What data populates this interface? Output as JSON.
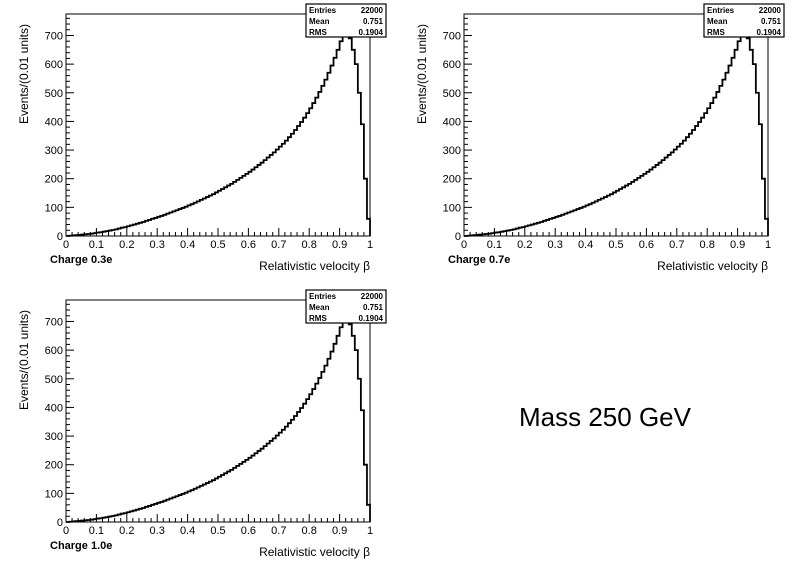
{
  "annotation": "Mass 250 GeV",
  "colors": {
    "line": "#000000",
    "background": "#ffffff"
  },
  "chart_data": [
    {
      "type": "histogram",
      "title": "",
      "caption": "Charge 0.3e",
      "xlabel": "Relativistic velocity β",
      "ylabel": "Events/(0.01 units)",
      "xlim": [
        0,
        1
      ],
      "ylim": [
        0,
        700
      ],
      "xticks": [
        "0",
        "0.1",
        "0.2",
        "0.3",
        "0.4",
        "0.5",
        "0.6",
        "0.7",
        "0.8",
        "0.9",
        "1"
      ],
      "yticks": [
        "0",
        "100",
        "200",
        "300",
        "400",
        "500",
        "600",
        "700"
      ],
      "bin_width": 0.01,
      "stats": {
        "Entries": "22000",
        "Mean": "0.751",
        "RMS": "0.1904"
      },
      "legend_position": "top-right",
      "grid": false,
      "values": [
        0,
        1,
        2,
        3,
        4,
        5,
        6,
        7,
        8,
        10,
        12,
        13,
        15,
        17,
        19,
        21,
        23,
        26,
        29,
        31,
        34,
        37,
        40,
        43,
        46,
        49,
        53,
        56,
        60,
        63,
        67,
        70,
        74,
        78,
        82,
        86,
        90,
        94,
        98,
        102,
        107,
        111,
        116,
        121,
        126,
        131,
        136,
        141,
        146,
        152,
        158,
        164,
        170,
        176,
        182,
        189,
        196,
        203,
        210,
        217,
        224,
        232,
        240,
        248,
        256,
        265,
        274,
        283,
        292,
        302,
        312,
        322,
        333,
        345,
        357,
        370,
        384,
        398,
        413,
        429,
        446,
        464,
        483,
        503,
        524,
        546,
        570,
        595,
        622,
        650,
        680,
        700,
        700,
        690,
        650,
        600,
        500,
        390,
        200,
        60
      ]
    },
    {
      "type": "histogram",
      "title": "",
      "caption": "Charge 0.7e",
      "xlabel": "Relativistic velocity β",
      "ylabel": "Events/(0.01 units)",
      "xlim": [
        0,
        1
      ],
      "ylim": [
        0,
        700
      ],
      "xticks": [
        "0",
        "0.1",
        "0.2",
        "0.3",
        "0.4",
        "0.5",
        "0.6",
        "0.7",
        "0.8",
        "0.9",
        "1"
      ],
      "yticks": [
        "0",
        "100",
        "200",
        "300",
        "400",
        "500",
        "600",
        "700"
      ],
      "bin_width": 0.01,
      "stats": {
        "Entries": "22000",
        "Mean": "0.751",
        "RMS": "0.1904"
      },
      "legend_position": "top-right",
      "grid": false,
      "values": [
        0,
        1,
        2,
        3,
        4,
        5,
        6,
        7,
        8,
        10,
        12,
        13,
        15,
        17,
        19,
        21,
        23,
        26,
        29,
        31,
        34,
        37,
        40,
        43,
        46,
        49,
        53,
        56,
        60,
        63,
        67,
        70,
        74,
        78,
        82,
        86,
        90,
        94,
        98,
        102,
        107,
        111,
        116,
        121,
        126,
        131,
        136,
        141,
        146,
        152,
        158,
        164,
        170,
        176,
        182,
        189,
        196,
        203,
        210,
        217,
        224,
        232,
        240,
        248,
        256,
        265,
        274,
        283,
        292,
        302,
        312,
        322,
        333,
        345,
        357,
        370,
        384,
        398,
        413,
        429,
        446,
        464,
        483,
        503,
        524,
        546,
        570,
        595,
        622,
        650,
        680,
        700,
        700,
        690,
        650,
        600,
        500,
        390,
        200,
        60
      ]
    },
    {
      "type": "histogram",
      "title": "",
      "caption": "Charge 1.0e",
      "xlabel": "Relativistic velocity β",
      "ylabel": "Events/(0.01 units)",
      "xlim": [
        0,
        1
      ],
      "ylim": [
        0,
        700
      ],
      "xticks": [
        "0",
        "0.1",
        "0.2",
        "0.3",
        "0.4",
        "0.5",
        "0.6",
        "0.7",
        "0.8",
        "0.9",
        "1"
      ],
      "yticks": [
        "0",
        "100",
        "200",
        "300",
        "400",
        "500",
        "600",
        "700"
      ],
      "bin_width": 0.01,
      "stats": {
        "Entries": "22000",
        "Mean": "0.751",
        "RMS": "0.1904"
      },
      "legend_position": "top-right",
      "grid": false,
      "values": [
        0,
        1,
        2,
        3,
        4,
        5,
        6,
        7,
        8,
        10,
        12,
        13,
        15,
        17,
        19,
        21,
        23,
        26,
        29,
        31,
        34,
        37,
        40,
        43,
        46,
        49,
        53,
        56,
        60,
        63,
        67,
        70,
        74,
        78,
        82,
        86,
        90,
        94,
        98,
        102,
        107,
        111,
        116,
        121,
        126,
        131,
        136,
        141,
        146,
        152,
        158,
        164,
        170,
        176,
        182,
        189,
        196,
        203,
        210,
        217,
        224,
        232,
        240,
        248,
        256,
        265,
        274,
        283,
        292,
        302,
        312,
        322,
        333,
        345,
        357,
        370,
        384,
        398,
        413,
        429,
        446,
        464,
        483,
        503,
        524,
        546,
        570,
        595,
        622,
        650,
        680,
        700,
        700,
        690,
        650,
        600,
        500,
        390,
        200,
        60
      ]
    }
  ]
}
